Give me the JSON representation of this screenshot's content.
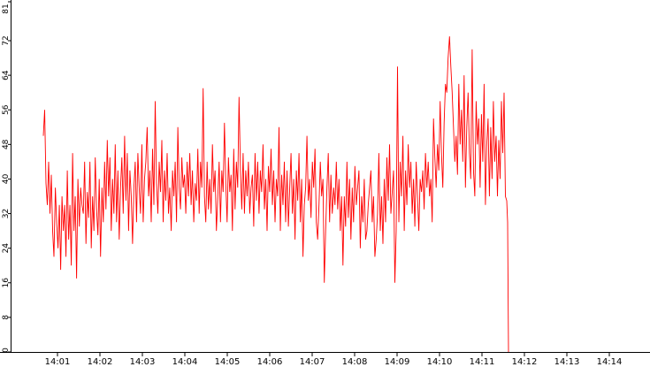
{
  "chart_data": {
    "type": "line",
    "title": "",
    "xlabel": "",
    "ylabel": "",
    "ylim": [
      0,
      81
    ],
    "y_ticks": [
      "0",
      "8",
      "16",
      "24",
      "32",
      "40",
      "48",
      "56",
      "64",
      "72",
      "81"
    ],
    "x_ticks": [
      "14:01",
      "14:02",
      "14:03",
      "14:04",
      "14:05",
      "14:06",
      "14:07",
      "14:08",
      "14:09",
      "14:10",
      "14:11",
      "14:12",
      "14:13",
      "14:14"
    ],
    "grid": false,
    "legend": "none",
    "colors": {
      "line": "#ff0000",
      "axis": "#000000",
      "background": "#ffffff"
    },
    "series": [
      {
        "color": "#ff0000",
        "x_start": "14:00:40",
        "x_end": "14:11:35",
        "values": [
          50,
          56,
          39,
          34,
          44,
          32,
          41,
          28,
          22,
          38,
          30,
          24,
          34,
          19,
          36,
          28,
          34,
          22,
          42,
          26,
          34,
          20,
          46,
          28,
          36,
          17,
          40,
          29,
          38,
          34,
          32,
          44,
          25,
          37,
          31,
          44,
          24,
          36,
          28,
          45,
          33,
          27,
          40,
          22,
          38,
          30,
          44,
          33,
          49,
          36,
          45,
          28,
          40,
          32,
          48,
          30,
          42,
          26,
          38,
          45,
          32,
          50,
          35,
          46,
          28,
          42,
          36,
          25,
          38,
          44,
          30,
          46,
          38,
          32,
          48,
          30,
          40,
          44,
          52,
          36,
          42,
          30,
          47,
          34,
          58,
          39,
          32,
          44,
          37,
          49,
          30,
          42,
          35,
          46,
          32,
          38,
          28,
          42,
          36,
          44,
          30,
          52,
          38,
          33,
          45,
          38,
          41,
          32,
          44,
          36,
          46,
          34,
          42,
          30,
          39,
          35,
          47,
          32,
          44,
          38,
          61,
          36,
          30,
          44,
          33,
          40,
          32,
          48,
          37,
          42,
          28,
          36,
          44,
          30,
          42,
          37,
          53,
          39,
          30,
          45,
          37,
          41,
          28,
          47,
          33,
          44,
          38,
          59,
          42,
          33,
          46,
          32,
          42,
          36,
          44,
          32,
          38,
          41,
          29,
          46,
          35,
          44,
          32,
          42,
          37,
          48,
          33,
          40,
          28,
          43,
          37,
          47,
          34,
          42,
          30,
          40,
          36,
          52,
          28,
          41,
          34,
          44,
          30,
          42,
          29,
          38,
          46,
          32,
          40,
          26,
          42,
          35,
          46,
          30,
          40,
          22,
          34,
          38,
          50,
          35,
          40,
          31,
          44,
          38,
          47,
          30,
          26,
          34,
          44,
          36,
          40,
          16,
          28,
          38,
          46,
          30,
          41,
          32,
          38,
          34,
          44,
          33,
          40,
          28,
          36,
          20,
          36,
          29,
          44,
          31,
          40,
          26,
          38,
          30,
          43,
          34,
          38,
          42,
          24,
          36,
          30,
          40,
          26,
          28,
          34,
          38,
          42,
          30,
          36,
          22,
          26,
          32,
          46,
          28,
          36,
          25,
          40,
          30,
          45,
          35,
          48,
          32,
          37,
          42,
          16,
          28,
          66,
          30,
          44,
          36,
          50,
          28,
          42,
          34,
          48,
          38,
          44,
          32,
          40,
          29,
          44,
          36,
          28,
          40,
          37,
          42,
          33,
          46,
          38,
          44,
          36,
          40,
          30,
          54,
          45,
          38,
          48,
          42,
          58,
          46,
          38,
          53,
          62,
          60,
          68,
          73,
          66,
          60,
          52,
          44,
          50,
          41,
          62,
          48,
          56,
          44,
          64,
          38,
          52,
          60,
          46,
          40,
          70,
          42,
          36,
          58,
          48,
          54,
          38,
          55,
          44,
          62,
          34,
          48,
          54,
          36,
          52,
          40,
          58,
          44,
          50,
          36,
          49,
          40,
          58,
          46,
          60,
          36,
          35
        ]
      }
    ]
  }
}
